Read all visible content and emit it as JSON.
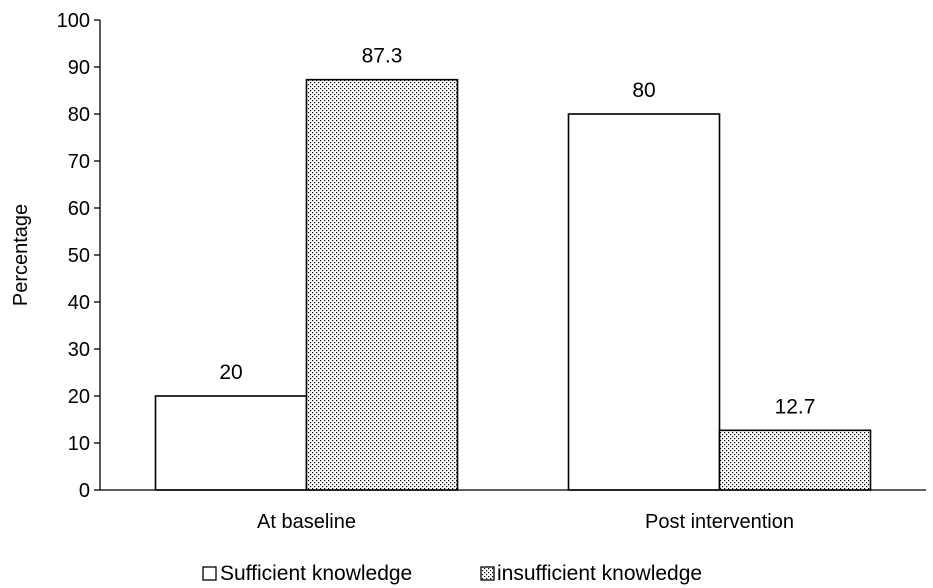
{
  "chart_data": {
    "type": "bar",
    "categories": [
      "At baseline",
      "Post intervention"
    ],
    "series": [
      {
        "name": "Sufficient knowledge",
        "values": [
          20,
          80
        ],
        "pattern": "solid",
        "fill": "#ffffff"
      },
      {
        "name": "insufficient knowledge",
        "values": [
          87.3,
          12.7
        ],
        "pattern": "dotted",
        "fill": "#ffffff"
      }
    ],
    "data_labels": [
      [
        "20",
        "80"
      ],
      [
        "87.3",
        "12.7"
      ]
    ],
    "title": "",
    "xlabel": "",
    "ylabel": "Percentage",
    "ylim": [
      0,
      100
    ],
    "yticks": [
      0,
      10,
      20,
      30,
      40,
      50,
      60,
      70,
      80,
      90,
      100
    ],
    "grid": false,
    "legend_position": "bottom",
    "colors": {
      "axis": "#000000",
      "bar_edge": "#000000",
      "dots": "#000000"
    }
  }
}
